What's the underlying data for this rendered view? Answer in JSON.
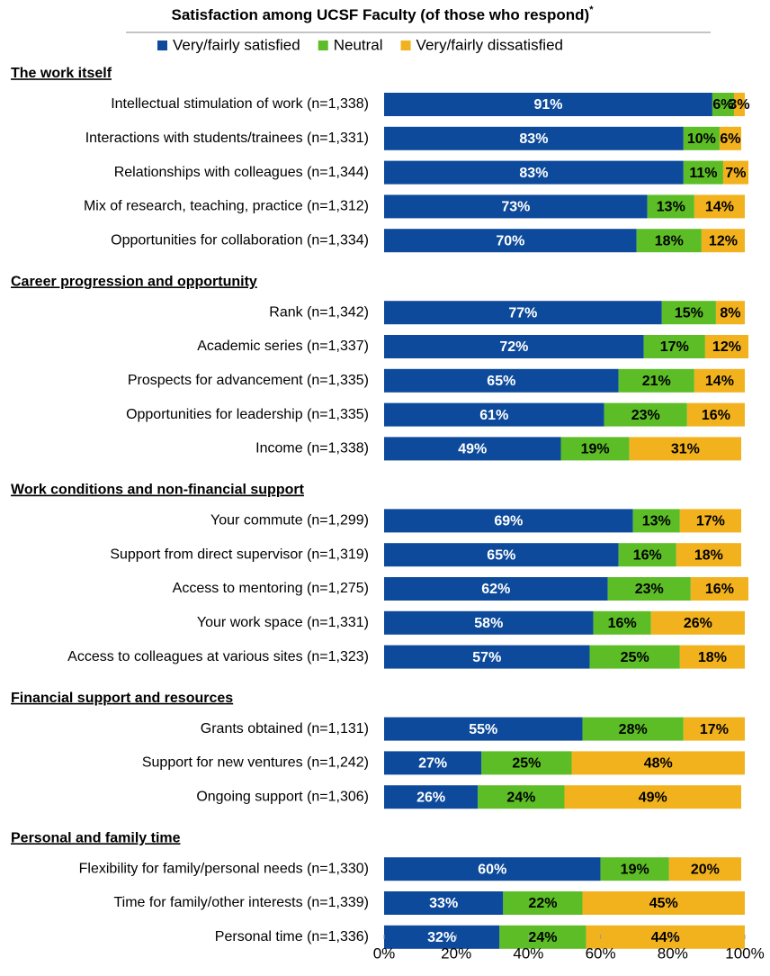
{
  "chart_data": {
    "type": "stacked-bar-h",
    "title": "Satisfaction among UCSF Faculty (of those who respond)",
    "title_mark": "*",
    "groups": [
      {
        "name": "The work itself",
        "categories": [
          "Intellectual stimulation of work (n=1,338)",
          "Interactions with students/trainees (n=1,331)",
          "Relationships with colleagues (n=1,344)",
          "Mix of research, teaching, practice  (n=1,312)",
          "Opportunities for collaboration (n=1,334)"
        ]
      },
      {
        "name": "Career progression and opportunity",
        "categories": [
          "Rank (n=1,342)",
          "Academic series (n=1,337)",
          "Prospects for advancement (n=1,335)",
          "Opportunities for leadership (n=1,335)",
          "Income (n=1,338)"
        ]
      },
      {
        "name": "Work conditions and non-financial support",
        "categories": [
          "Your commute (n=1,299)",
          "Support from direct supervisor (n=1,319)",
          "Access to mentoring (n=1,275)",
          "Your work space (n=1,331)",
          "Access to colleagues at various sites (n=1,323)"
        ]
      },
      {
        "name": "Financial support and resources",
        "categories": [
          "Grants obtained (n=1,131)",
          "Support for new ventures (n=1,242)",
          "Ongoing support (n=1,306)"
        ]
      },
      {
        "name": "Personal and family time",
        "categories": [
          "Flexibility for family/personal needs (n=1,330)",
          "Time for family/other interests (n=1,339)",
          "Personal time (n=1,336)"
        ]
      }
    ],
    "series": [
      {
        "name": "Very/fairly satisfied",
        "color": "#0d4a9b",
        "label_color": "#ffffff",
        "values": [
          91,
          83,
          83,
          73,
          70,
          77,
          72,
          65,
          61,
          49,
          69,
          65,
          62,
          58,
          57,
          55,
          27,
          26,
          60,
          33,
          32
        ],
        "value_labels": [
          "91%",
          "83%",
          "83%",
          "73%",
          "70%",
          "77%",
          "72%",
          "65%",
          "61%",
          "49%",
          "69%",
          "65%",
          "62%",
          "58%",
          "57%",
          "55%",
          "27%",
          "26%",
          "60%",
          "33%",
          "32%"
        ]
      },
      {
        "name": "Neutral",
        "color": "#5cbd26",
        "label_color": "#000000",
        "values": [
          6,
          10,
          11,
          13,
          18,
          15,
          17,
          21,
          23,
          19,
          13,
          16,
          23,
          16,
          25,
          28,
          25,
          24,
          19,
          22,
          24
        ],
        "value_labels": [
          "6%",
          "10%",
          "11%",
          "13%",
          "18%",
          "15%",
          "17%",
          "21%",
          "23%",
          "19%",
          "13%",
          "16%",
          "23%",
          "16%",
          "25%",
          "28%",
          "25%",
          "24%",
          "19%",
          "22%",
          "24%"
        ]
      },
      {
        "name": "Very/fairly dissatisfied",
        "color": "#f2b21e",
        "label_color": "#000000",
        "values": [
          3,
          6,
          7,
          14,
          12,
          8,
          12,
          14,
          16,
          31,
          17,
          18,
          16,
          26,
          18,
          17,
          48,
          49,
          20,
          45,
          44
        ],
        "value_labels": [
          "3%",
          "6%",
          "7%",
          "14%",
          "12%",
          "8%",
          "12%",
          "14%",
          "16%",
          "31%",
          "17%",
          "18%",
          "16%",
          "26%",
          "18%",
          "17%",
          "48%",
          "49%",
          "20%",
          "45%",
          "44%"
        ]
      }
    ],
    "xlim": [
      0,
      100
    ],
    "xticks": [
      {
        "value": 0,
        "label": "0%"
      },
      {
        "value": 20,
        "label": "20%"
      },
      {
        "value": 40,
        "label": "40%"
      },
      {
        "value": 60,
        "label": "60%"
      },
      {
        "value": 80,
        "label": "80%"
      },
      {
        "value": 100,
        "label": "100%"
      }
    ]
  }
}
